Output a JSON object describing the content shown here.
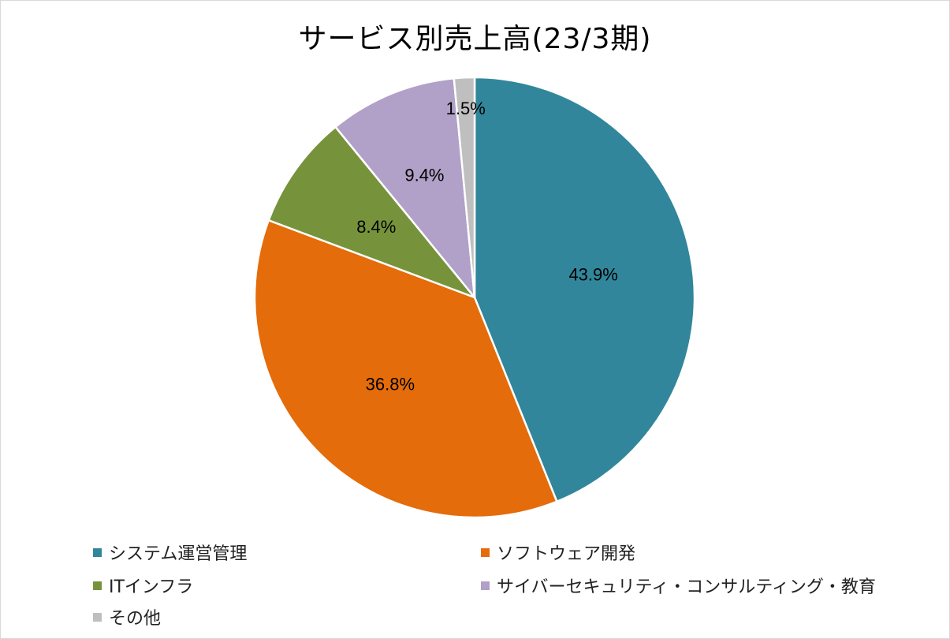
{
  "chart_data": {
    "type": "pie",
    "title": "サービス別売上高(23/3期)",
    "slices": [
      {
        "label": "システム運営管理",
        "value": 43.9,
        "display": "43.9%",
        "color": "#31869b"
      },
      {
        "label": "ソフトウェア開発",
        "value": 36.8,
        "display": "36.8%",
        "color": "#e46c0a"
      },
      {
        "label": "ITインフラ",
        "value": 8.4,
        "display": "8.4%",
        "color": "#76933c"
      },
      {
        "label": "サイバーセキュリティ・コンサルティング・教育",
        "value": 9.4,
        "display": "9.4%",
        "color": "#b1a0c7"
      },
      {
        "label": "その他",
        "value": 1.5,
        "display": "1.5%",
        "color": "#bfbfbf"
      }
    ],
    "legend_position": "bottom",
    "start_angle": "12 o'clock",
    "direction": "clockwise"
  }
}
